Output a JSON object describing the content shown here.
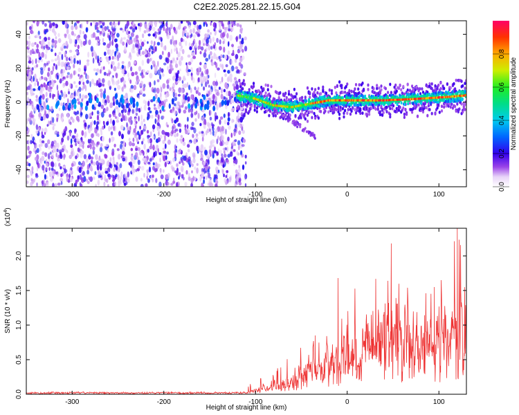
{
  "figure_title": "C2E2.2025.281.22.15.G04",
  "chart_data": [
    {
      "type": "heatmap",
      "xlabel": "Height of straight line (km)",
      "ylabel": "Frequency (Hz)",
      "xlim": [
        -350,
        130
      ],
      "ylim": [
        -50,
        48
      ],
      "xticks": [
        -300,
        -200,
        -100,
        0,
        100
      ],
      "yticks": [
        -40,
        -20,
        0,
        20,
        40
      ],
      "colorbar": {
        "label": "Normalized spectral amplitude",
        "range": [
          0,
          1
        ],
        "ticks": [
          "0.0",
          "0.2",
          "0.4",
          "0.6",
          "0.8"
        ],
        "tick_values": [
          0.0,
          0.2,
          0.4,
          0.6,
          0.8
        ]
      },
      "features": [
        {
          "name": "noise-region",
          "x_range": [
            -350,
            -115
          ],
          "freq_range": [
            -50,
            48
          ],
          "amplitude": "low (0.1-0.3)"
        },
        {
          "name": "signal-band",
          "x_range": [
            -120,
            130
          ],
          "center_freq_hz": [
            {
              "x": -120,
              "f": 4
            },
            {
              "x": -100,
              "f": 2
            },
            {
              "x": -80,
              "f": -2
            },
            {
              "x": -60,
              "f": -3
            },
            {
              "x": -40,
              "f": -1
            },
            {
              "x": -20,
              "f": 1
            },
            {
              "x": 0,
              "f": 1
            },
            {
              "x": 40,
              "f": 1
            },
            {
              "x": 80,
              "f": 2
            },
            {
              "x": 110,
              "f": 3
            },
            {
              "x": 130,
              "f": 4
            }
          ],
          "peak_amplitude": 0.95
        },
        {
          "name": "faint-tail",
          "x_range": [
            -80,
            -35
          ],
          "freq_range": [
            -20,
            -5
          ]
        }
      ]
    },
    {
      "type": "line",
      "xlabel": "Height of straight line (km)",
      "ylabel": "SNR (10 * v/v)",
      "y_multiplier": "(x10",
      "y_multiplier_exp": "4",
      "y_multiplier_close": ")",
      "xlim": [
        -350,
        130
      ],
      "ylim": [
        0,
        2.4
      ],
      "xticks": [
        -300,
        -200,
        -100,
        0,
        100
      ],
      "yticks": [
        "0.0",
        "0.5",
        "1.0",
        "1.5",
        "2.0"
      ],
      "ytick_values": [
        0.0,
        0.5,
        1.0,
        1.5,
        2.0
      ],
      "series": [
        {
          "name": "SNR",
          "color": "#ee3333",
          "envelope": {
            "x": [
              -350,
              -120,
              -100,
              -80,
              -60,
              -40,
              -20,
              0,
              20,
              40,
              50,
              60,
              80,
              100,
              110,
              120,
              130
            ],
            "mean": [
              0.01,
              0.01,
              0.05,
              0.15,
              0.25,
              0.35,
              0.45,
              0.65,
              0.8,
              0.9,
              1.0,
              0.85,
              0.8,
              0.75,
              0.9,
              1.0,
              1.05
            ],
            "max": [
              0.04,
              0.04,
              0.2,
              0.35,
              0.6,
              0.85,
              1.0,
              1.5,
              1.65,
              1.95,
              2.18,
              1.6,
              1.7,
              1.6,
              2.0,
              2.42,
              1.9
            ]
          }
        }
      ]
    }
  ],
  "colors": {
    "accent": "#ee3333",
    "noise": "#7733dd",
    "axis": "#000000"
  }
}
